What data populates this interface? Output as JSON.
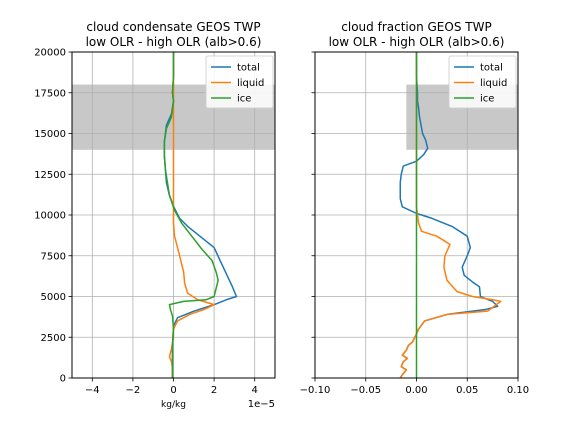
{
  "chart_data": [
    {
      "type": "line",
      "title_lines": [
        "cloud condensate GEOS TWP",
        "low OLR - high OLR (alb>0.6)"
      ],
      "xlabel": "kg/kg",
      "x_offset_text": "1e−5",
      "ylabel": "",
      "xlim": [
        -5,
        5
      ],
      "ylim": [
        0,
        20000
      ],
      "xticks": [
        -4,
        -2,
        0,
        2,
        4
      ],
      "xtick_labels": [
        "−4",
        "−2",
        "0",
        "2",
        "4"
      ],
      "yticks": [
        0,
        2500,
        5000,
        7500,
        10000,
        12500,
        15000,
        17500,
        20000
      ],
      "ytick_labels": [
        "0",
        "2500",
        "5000",
        "7500",
        "10000",
        "12500",
        "15000",
        "17500",
        "20000"
      ],
      "shaded_band": {
        "y": [
          14000,
          18000
        ],
        "x": [
          -5,
          5
        ],
        "color": "#c8c8c8"
      },
      "grid": true,
      "legend": "upper-right",
      "series": [
        {
          "name": "total",
          "color": "#1f77b4",
          "points": [
            [
              -0.05,
              0
            ],
            [
              -0.05,
              2000
            ],
            [
              0,
              3200
            ],
            [
              0.2,
              3700
            ],
            [
              1,
              4100
            ],
            [
              2,
              4500
            ],
            [
              2.6,
              4800
            ],
            [
              3.1,
              5000
            ],
            [
              2.9,
              5600
            ],
            [
              2.6,
              6400
            ],
            [
              2.3,
              7200
            ],
            [
              2,
              8000
            ],
            [
              1.3,
              8700
            ],
            [
              0.7,
              9300
            ],
            [
              0.3,
              9800
            ],
            [
              0.05,
              10400
            ],
            [
              -0.2,
              11200
            ],
            [
              -0.35,
              12000
            ],
            [
              -0.4,
              12800
            ],
            [
              -0.45,
              13600
            ],
            [
              -0.45,
              14500
            ],
            [
              -0.35,
              15500
            ],
            [
              -0.1,
              16200
            ],
            [
              0,
              17000
            ],
            [
              -0.05,
              17500
            ],
            [
              0,
              18500
            ],
            [
              0,
              20000
            ]
          ]
        },
        {
          "name": "liquid",
          "color": "#ff7f0e",
          "points": [
            [
              -0.05,
              0
            ],
            [
              -0.05,
              600
            ],
            [
              -0.1,
              1000
            ],
            [
              -0.2,
              1300
            ],
            [
              -0.1,
              1800
            ],
            [
              0,
              2500
            ],
            [
              0,
              3000
            ],
            [
              0.2,
              3500
            ],
            [
              0.8,
              3900
            ],
            [
              1.5,
              4200
            ],
            [
              2,
              4500
            ],
            [
              1.2,
              4800
            ],
            [
              0.7,
              5200
            ],
            [
              0.55,
              5800
            ],
            [
              0.5,
              6500
            ],
            [
              0.4,
              7000
            ],
            [
              0.3,
              7500
            ],
            [
              0.2,
              8000
            ],
            [
              0.05,
              8700
            ],
            [
              0,
              9500
            ],
            [
              0,
              10500
            ],
            [
              0,
              12000
            ],
            [
              0,
              14000
            ],
            [
              0,
              20000
            ]
          ]
        },
        {
          "name": "ice",
          "color": "#2ca02c",
          "points": [
            [
              -0.05,
              0
            ],
            [
              -0.05,
              2000
            ],
            [
              0,
              3000
            ],
            [
              -0.05,
              3800
            ],
            [
              -0.15,
              4200
            ],
            [
              -0.2,
              4500
            ],
            [
              0.5,
              4700
            ],
            [
              1.6,
              4800
            ],
            [
              2,
              5000
            ],
            [
              2.1,
              5500
            ],
            [
              2.2,
              6000
            ],
            [
              2.1,
              6500
            ],
            [
              1.9,
              7200
            ],
            [
              1.4,
              7900
            ],
            [
              0.9,
              8700
            ],
            [
              0.4,
              9500
            ],
            [
              0.05,
              10300
            ],
            [
              -0.2,
              11200
            ],
            [
              -0.3,
              12000
            ],
            [
              -0.4,
              12800
            ],
            [
              -0.45,
              13700
            ],
            [
              -0.45,
              14500
            ],
            [
              -0.35,
              15300
            ],
            [
              -0.1,
              16000
            ],
            [
              0,
              17000
            ],
            [
              -0.05,
              17500
            ],
            [
              0,
              18500
            ],
            [
              0,
              20000
            ]
          ]
        }
      ]
    },
    {
      "type": "line",
      "title_lines": [
        "cloud fraction GEOS TWP",
        "low OLR - high OLR (alb>0.6)"
      ],
      "xlabel": "",
      "xlim": [
        -0.1,
        0.1
      ],
      "ylim": [
        0,
        20000
      ],
      "xticks": [
        -0.1,
        -0.05,
        0,
        0.05,
        0.1
      ],
      "xtick_labels": [
        "−0.10",
        "−0.05",
        "0.00",
        "0.05",
        "0.10"
      ],
      "yticks": [
        0,
        2500,
        5000,
        7500,
        10000,
        12500,
        15000,
        17500,
        20000
      ],
      "shaded_band": {
        "y": [
          14000,
          18000
        ],
        "x": [
          -0.01,
          0.1
        ],
        "color": "#c8c8c8"
      },
      "grid": true,
      "legend": "upper-right",
      "series": [
        {
          "name": "total",
          "color": "#1f77b4",
          "points": [
            [
              -0.016,
              0
            ],
            [
              -0.014,
              200
            ],
            [
              -0.01,
              500
            ],
            [
              -0.015,
              700
            ],
            [
              -0.013,
              1000
            ],
            [
              -0.009,
              1200
            ],
            [
              -0.014,
              1400
            ],
            [
              -0.01,
              1700
            ],
            [
              -0.008,
              2000
            ],
            [
              -0.004,
              2200
            ],
            [
              0,
              2700
            ],
            [
              0.002,
              3000
            ],
            [
              0.008,
              3500
            ],
            [
              0.03,
              3900
            ],
            [
              0.068,
              4200
            ],
            [
              0.08,
              4400
            ],
            [
              0.075,
              4700
            ],
            [
              0.063,
              5000
            ],
            [
              0.062,
              5600
            ],
            [
              0.055,
              5900
            ],
            [
              0.047,
              6300
            ],
            [
              0.045,
              6800
            ],
            [
              0.05,
              7500
            ],
            [
              0.053,
              8000
            ],
            [
              0.05,
              8700
            ],
            [
              0.035,
              9300
            ],
            [
              0.015,
              9800
            ],
            [
              0,
              10100
            ],
            [
              -0.014,
              10500
            ],
            [
              -0.016,
              11000
            ],
            [
              -0.016,
              12000
            ],
            [
              -0.015,
              12500
            ],
            [
              -0.013,
              13000
            ],
            [
              0,
              13300
            ],
            [
              0.007,
              13700
            ],
            [
              0.011,
              14100
            ],
            [
              0.009,
              14600
            ],
            [
              0.006,
              15000
            ],
            [
              0.003,
              16000
            ],
            [
              0.002,
              16600
            ],
            [
              0.001,
              17000
            ],
            [
              0.001,
              17500
            ],
            [
              0,
              18500
            ],
            [
              0,
              20000
            ]
          ]
        },
        {
          "name": "liquid",
          "color": "#ff7f0e",
          "points": [
            [
              -0.016,
              0
            ],
            [
              -0.014,
              200
            ],
            [
              -0.01,
              500
            ],
            [
              -0.015,
              700
            ],
            [
              -0.013,
              1000
            ],
            [
              -0.009,
              1200
            ],
            [
              -0.014,
              1400
            ],
            [
              -0.01,
              1700
            ],
            [
              -0.008,
              2000
            ],
            [
              -0.004,
              2200
            ],
            [
              0,
              2700
            ],
            [
              0.002,
              3000
            ],
            [
              0.008,
              3500
            ],
            [
              0.03,
              3900
            ],
            [
              0.07,
              4100
            ],
            [
              0.083,
              4700
            ],
            [
              0.075,
              4800
            ],
            [
              0.055,
              5000
            ],
            [
              0.04,
              5300
            ],
            [
              0.03,
              6000
            ],
            [
              0.027,
              6800
            ],
            [
              0.028,
              7500
            ],
            [
              0.033,
              8200
            ],
            [
              0.02,
              8700
            ],
            [
              0.005,
              9000
            ],
            [
              0.002,
              9500
            ],
            [
              0,
              10500
            ],
            [
              0,
              12000
            ],
            [
              0,
              20000
            ]
          ]
        },
        {
          "name": "ice",
          "color": "#2ca02c",
          "points": [
            [
              0,
              0
            ],
            [
              0,
              20000
            ]
          ]
        }
      ]
    }
  ]
}
